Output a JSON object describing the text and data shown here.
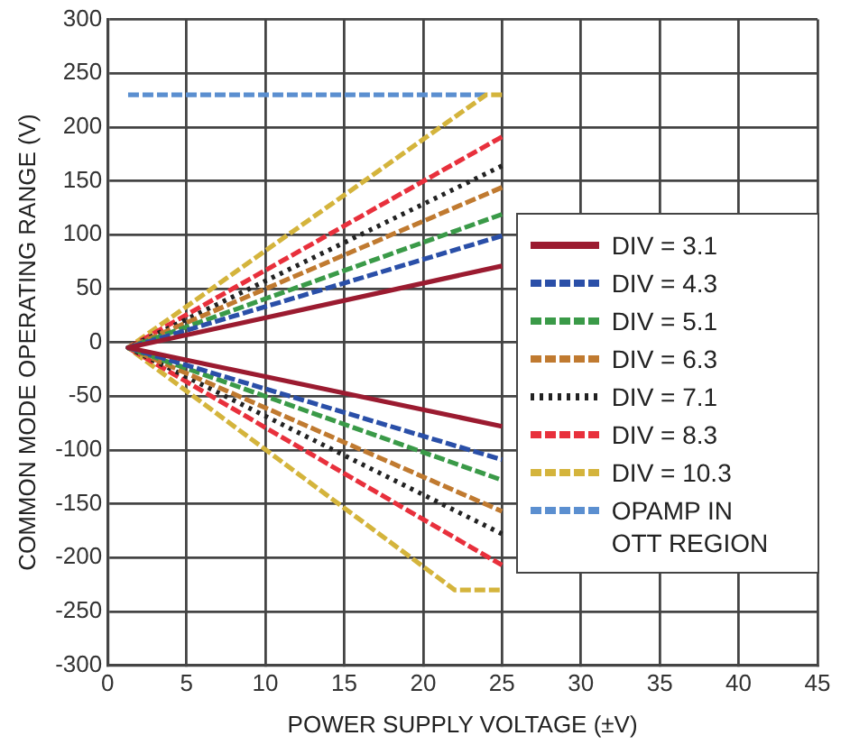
{
  "chart_data": {
    "type": "line",
    "xlabel": "POWER SUPPLY VOLTAGE (±V)",
    "ylabel": "COMMON MODE OPERATING RANGE (V)",
    "xlim": [
      0,
      45
    ],
    "xticks": [
      0,
      5,
      10,
      15,
      20,
      25,
      30,
      35,
      40,
      45
    ],
    "ylim": [
      -300,
      300
    ],
    "yticks": [
      -300,
      -250,
      -200,
      -150,
      -100,
      -50,
      0,
      50,
      100,
      150,
      200,
      250,
      300
    ],
    "grid": true,
    "legend": "right",
    "marker": "none",
    "series": [
      {
        "name": "DIV = 3.1",
        "color": "#9b1b30",
        "line_style": "solid",
        "x": [
          25,
          1.3,
          25
        ],
        "values": [
          71,
          -5,
          -78
        ]
      },
      {
        "name": "DIV = 4.3",
        "color": "#2a4fa8",
        "line_style": "dashed",
        "x": [
          25,
          1.3,
          25
        ],
        "values": [
          99,
          -5,
          -109
        ]
      },
      {
        "name": "DIV = 5.1",
        "color": "#3a9a48",
        "line_style": "dashed",
        "x": [
          25,
          1.3,
          25
        ],
        "values": [
          119,
          -5,
          -128
        ]
      },
      {
        "name": "DIV = 6.3",
        "color": "#c07a30",
        "line_style": "dashed",
        "x": [
          25,
          1.3,
          25
        ],
        "values": [
          144,
          -5,
          -157
        ]
      },
      {
        "name": "DIV = 7.1",
        "color": "#222222",
        "line_style": "dotted",
        "x": [
          25,
          1.3,
          25
        ],
        "values": [
          164,
          -5,
          -178
        ]
      },
      {
        "name": "DIV = 8.3",
        "color": "#e8303c",
        "line_style": "dashed",
        "x": [
          25,
          1.3,
          25
        ],
        "values": [
          191,
          -5,
          -207
        ]
      },
      {
        "name": "DIV = 10.3",
        "color": "#d4b43c",
        "line_style": "dashed",
        "x": [
          25,
          24,
          1.3,
          22,
          25
        ],
        "values": [
          230,
          230,
          -5,
          -230,
          -230
        ]
      },
      {
        "name": "OPAMP IN OTT REGION",
        "color": "#5b8fd0",
        "line_style": "dashed",
        "x": [
          1.3,
          24
        ],
        "values": [
          230,
          230
        ]
      }
    ]
  }
}
